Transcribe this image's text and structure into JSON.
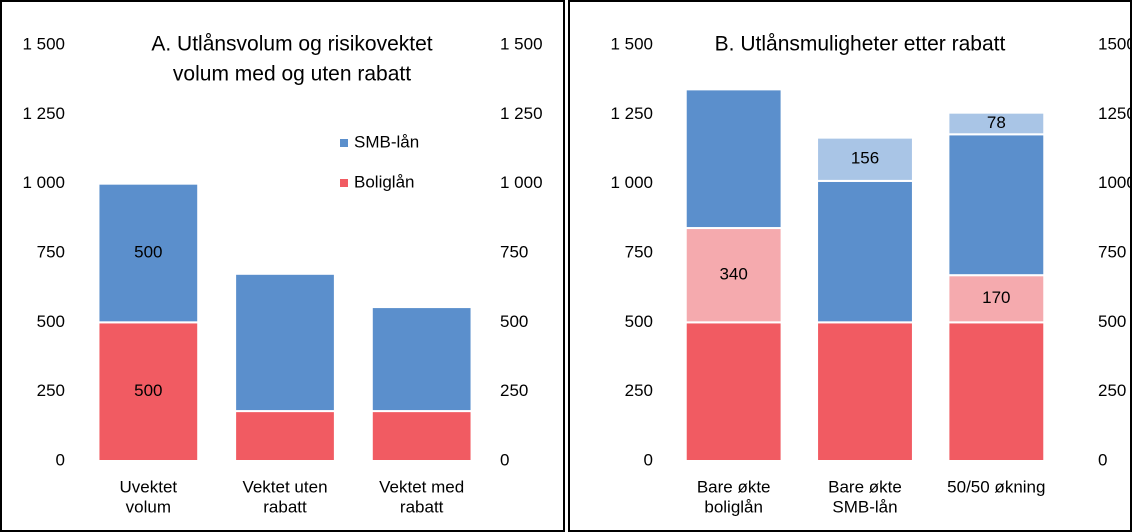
{
  "chart_data": [
    {
      "type": "stacked_bar",
      "title": [
        "A. Utlånsvolum og risikovektet",
        "volum med og uten rabatt"
      ],
      "categories": [
        [
          "Uvektet",
          "volum"
        ],
        [
          "Vektet uten",
          "rabatt"
        ],
        [
          "Vektet med",
          "rabatt"
        ]
      ],
      "series": [
        {
          "name": "Boliglån",
          "color": "#f15b62",
          "values": [
            500,
            180,
            180
          ],
          "value_labels": [
            "500",
            null,
            null
          ]
        },
        {
          "name": "SMB-lån",
          "color": "#5b8fcc",
          "values": [
            500,
            495,
            375
          ],
          "value_labels": [
            "500",
            null,
            null
          ]
        }
      ],
      "ylim": [
        0,
        1500
      ],
      "yticks": [
        0,
        250,
        500,
        750,
        {
          "value": 1000,
          "label": "1 000"
        },
        {
          "value": 1250,
          "label": "1 250"
        },
        {
          "value": 1500,
          "label": "1 500"
        }
      ],
      "y2lim": [
        0,
        1500
      ],
      "y2ticks": [
        0,
        250,
        500,
        750,
        {
          "value": 1000,
          "label": "1 000"
        },
        {
          "value": 1250,
          "label": "1 250"
        },
        {
          "value": 1500,
          "label": "1 500"
        }
      ],
      "legend": "upper right"
    },
    {
      "type": "stacked_bar",
      "title": [
        "B. Utlånsmuligheter etter rabatt"
      ],
      "categories": [
        [
          "Bare økte",
          "boliglån"
        ],
        [
          "Bare økte",
          "SMB-lån"
        ],
        [
          "50/50 økning"
        ]
      ],
      "series": [
        {
          "color": "#f15b62",
          "values": [
            500,
            500,
            500
          ],
          "value_labels": [
            null,
            null,
            null
          ]
        },
        {
          "color": "#f5aaae",
          "values": [
            340,
            null,
            170
          ],
          "value_labels": [
            "340",
            null,
            "170"
          ]
        },
        {
          "color": "#5b8fcc",
          "values": [
            500,
            510,
            508
          ],
          "value_labels": [
            null,
            null,
            null
          ]
        },
        {
          "color": "#a9c5e6",
          "values": [
            null,
            156,
            78
          ],
          "value_labels": [
            null,
            "156",
            "78"
          ]
        }
      ],
      "ylim": [
        0,
        1500
      ],
      "yticks": [
        0,
        250,
        500,
        750,
        {
          "value": 1000,
          "label": "1 000"
        },
        {
          "value": 1250,
          "label": "1 250"
        },
        {
          "value": 1500,
          "label": "1 500"
        }
      ],
      "y2lim": [
        0,
        1500
      ],
      "y2ticks": [
        0,
        250,
        500,
        750,
        1000,
        1250,
        1500
      ]
    }
  ]
}
